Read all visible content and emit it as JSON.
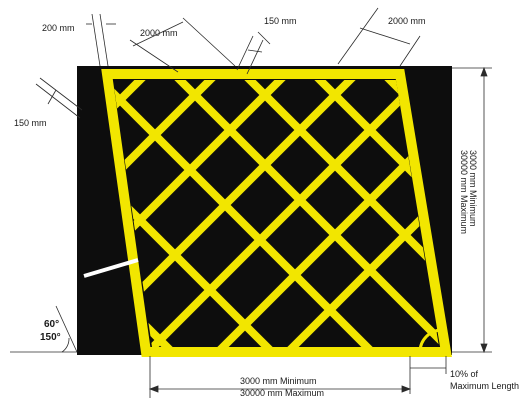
{
  "colors": {
    "background": "#ffffff",
    "road_surface": "#0d0d0d",
    "marking": "#f2e600",
    "marking_edge": "#b8ae00",
    "dimension_line": "#2b2b2b",
    "white_line": "#ffffff"
  },
  "labels": {
    "line_width_top": "200 mm",
    "spacing_top_left": "2000 mm",
    "inner_line_width": "150 mm",
    "spacing_top_right": "2000 mm",
    "line_width_left": "150 mm",
    "height_min": "3000 mm Minimum",
    "height_max": "30000 mm Maximum",
    "width_min": "3000 mm Minimum",
    "width_max": "30000 mm Maximum",
    "angle_primary": "60°",
    "angle_secondary": "150°",
    "corner_radius_line1": "10% of",
    "corner_radius_line2": "Maximum Length"
  }
}
